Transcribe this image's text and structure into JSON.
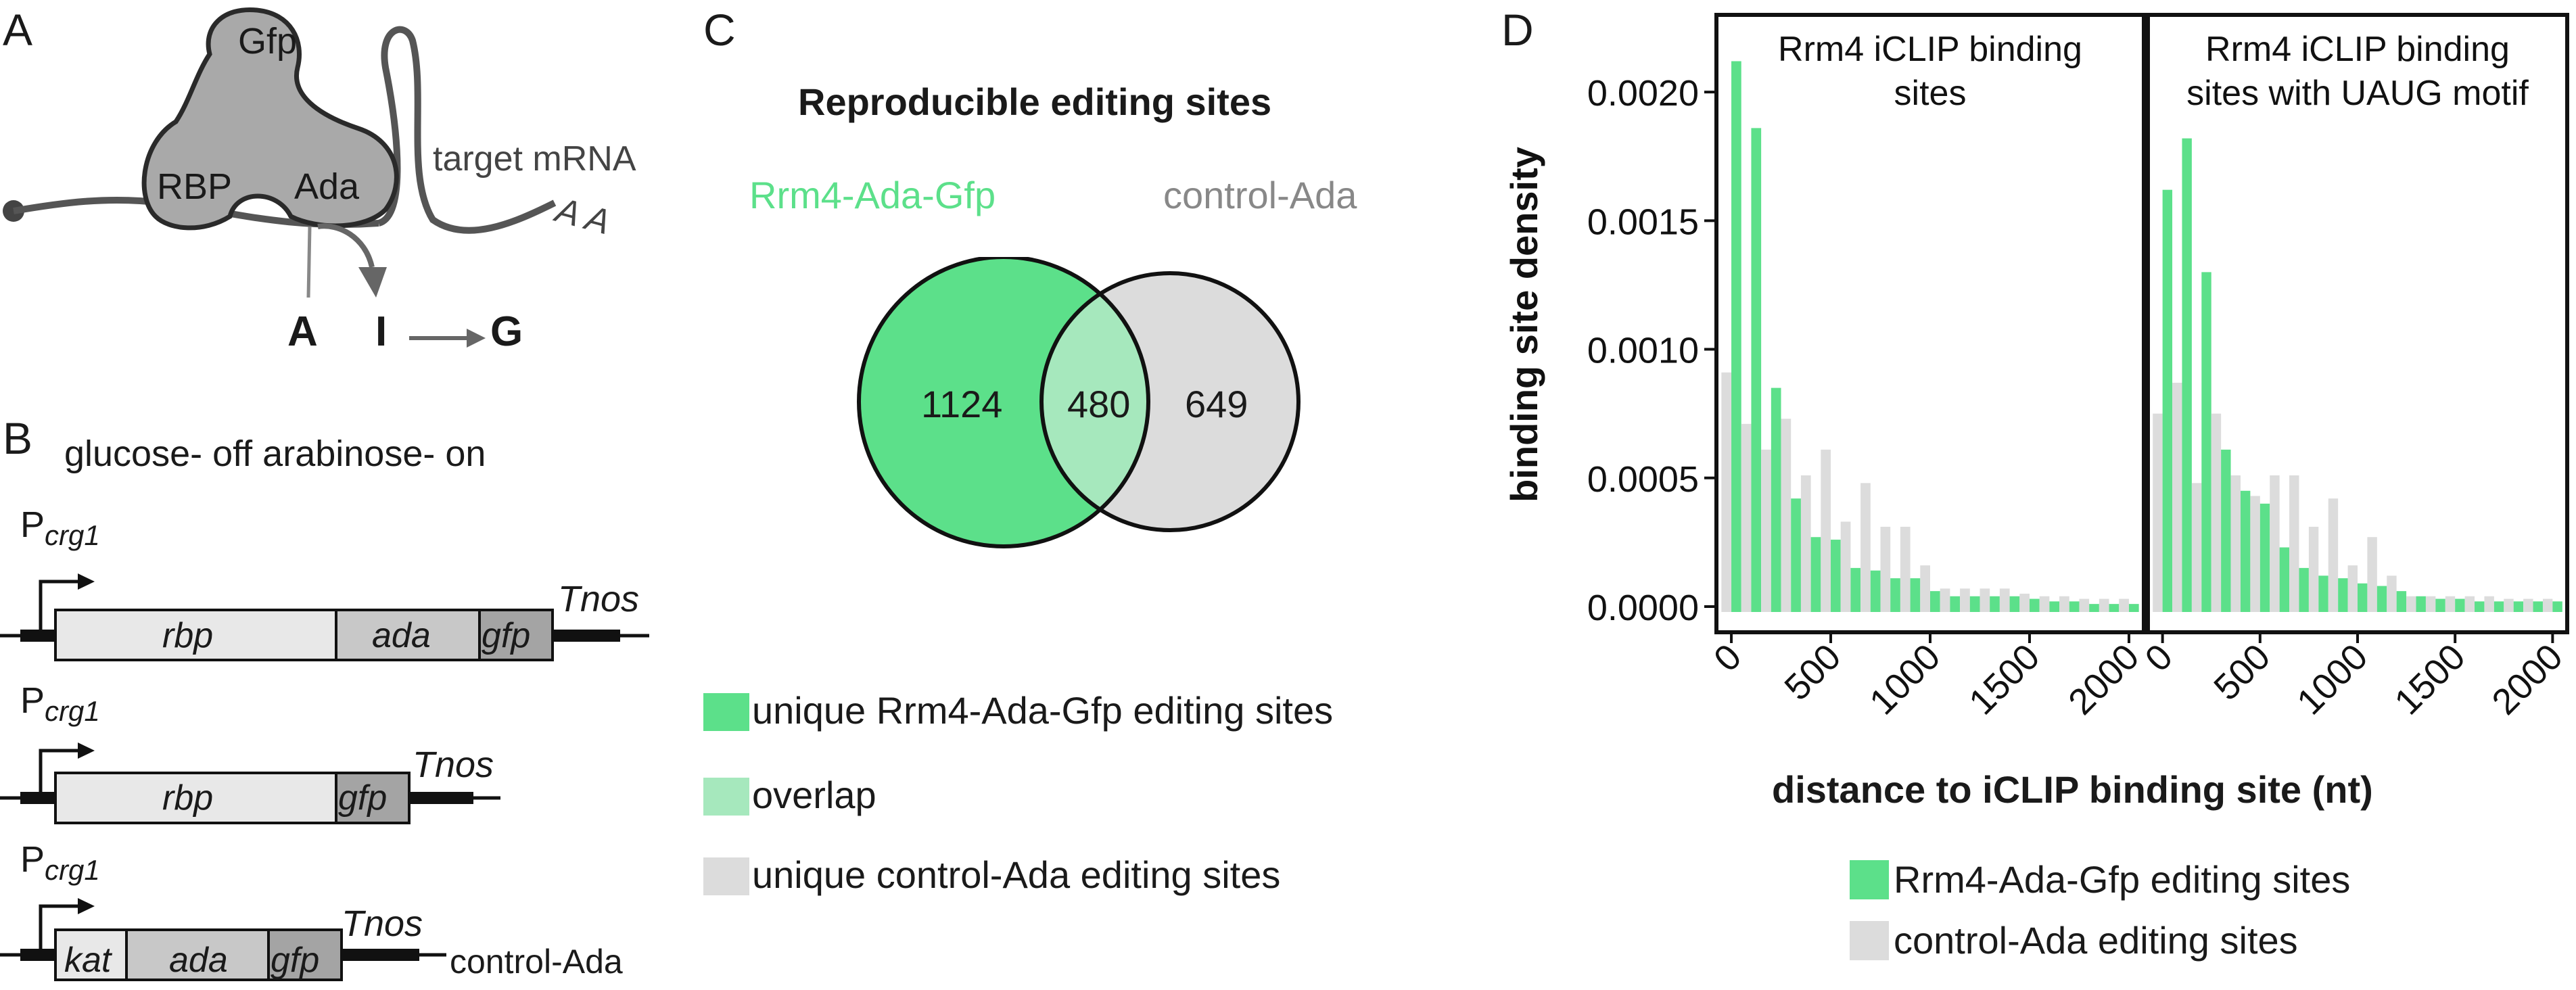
{
  "panelA": {
    "label": "A",
    "gfp": "Gfp",
    "rbp": "RBP",
    "ada": "Ada",
    "target_mrna": "target mRNA",
    "polyA": "A A",
    "nucleotides": [
      "A",
      "I",
      "G"
    ]
  },
  "panelB": {
    "label": "B",
    "condition": "glucose- off arabinose- on",
    "promoter": "P",
    "promoter_sub": "crg1",
    "terminator": "Tnos",
    "construct1": [
      "rbp",
      "ada",
      "gfp"
    ],
    "construct2": [
      "rbp",
      "gfp"
    ],
    "construct3": [
      "kat",
      "ada",
      "gfp"
    ],
    "construct3_name": "control-Ada"
  },
  "panelC": {
    "label": "C",
    "title": "Reproducible editing sites",
    "set1": "Rrm4-Ada-Gfp",
    "set2": "control-Ada",
    "unique1": "1124",
    "overlap": "480",
    "unique2": "649",
    "legend": [
      "unique Rrm4-Ada-Gfp editing sites",
      "overlap",
      "unique control-Ada editing sites"
    ],
    "colors": {
      "green": "#5ce08a",
      "overlap": "#a6e8bd",
      "gray": "#dcdcdc"
    }
  },
  "panelD": {
    "label": "D",
    "ylabel": "binding site density",
    "xlabel": "distance to iCLIP binding site (nt)",
    "facet_titles": [
      "Rrm4 iCLIP binding sites",
      "Rrm4 iCLIP binding sites with UAUG motif"
    ],
    "legend": [
      "Rrm4-Ada-Gfp editing sites",
      "control-Ada editing sites"
    ]
  },
  "chart_data": [
    {
      "type": "bar",
      "title": "Rrm4 iCLIP binding sites",
      "xlabel": "distance to iCLIP binding site (nt)",
      "ylabel": "binding site density",
      "x": [
        0,
        100,
        200,
        300,
        400,
        500,
        600,
        700,
        800,
        900,
        1000,
        1100,
        1200,
        1300,
        1400,
        1500,
        1600,
        1700,
        1800,
        1900,
        2000
      ],
      "xticks": [
        0,
        500,
        1000,
        1500,
        2000
      ],
      "yticks": [
        0.0,
        0.0005,
        0.001,
        0.0015,
        0.002
      ],
      "ylim": [
        -0.0001,
        0.0023
      ],
      "series": [
        {
          "name": "Rrm4-Ada-Gfp editing sites",
          "color": "#5ce08a",
          "values": [
            0.00212,
            0.00186,
            0.00085,
            0.00042,
            0.00027,
            0.00026,
            0.00015,
            0.00014,
            0.00011,
            0.00011,
            6e-05,
            4e-05,
            4e-05,
            4e-05,
            4e-05,
            3e-05,
            2e-05,
            2e-05,
            1e-05,
            1e-05,
            1e-05
          ]
        },
        {
          "name": "control-Ada editing sites",
          "color": "#dcdcdc",
          "values": [
            0.00091,
            0.00071,
            0.00061,
            0.00073,
            0.00051,
            0.00061,
            0.00033,
            0.00048,
            0.00031,
            0.00031,
            0.00016,
            7e-05,
            7e-05,
            7e-05,
            7e-05,
            5e-05,
            4e-05,
            4e-05,
            3e-05,
            3e-05,
            3e-05
          ]
        }
      ]
    },
    {
      "type": "bar",
      "title": "Rrm4 iCLIP binding sites with UAUG motif",
      "xlabel": "distance to iCLIP binding site (nt)",
      "ylabel": "binding site density",
      "x": [
        0,
        100,
        200,
        300,
        400,
        500,
        600,
        700,
        800,
        900,
        1000,
        1100,
        1200,
        1300,
        1400,
        1500,
        1600,
        1700,
        1800,
        1900,
        2000
      ],
      "xticks": [
        0,
        500,
        1000,
        1500,
        2000
      ],
      "ylim": [
        -0.0001,
        0.0023
      ],
      "series": [
        {
          "name": "Rrm4-Ada-Gfp editing sites",
          "color": "#5ce08a",
          "values": [
            0.00162,
            0.00182,
            0.0013,
            0.00061,
            0.00045,
            0.0004,
            0.00023,
            0.00015,
            0.00012,
            0.00011,
            9e-05,
            8e-05,
            6e-05,
            4e-05,
            3e-05,
            3e-05,
            2e-05,
            2e-05,
            2e-05,
            2e-05,
            2e-05
          ]
        },
        {
          "name": "control-Ada editing sites",
          "color": "#dcdcdc",
          "values": [
            0.00075,
            0.00087,
            0.00048,
            0.00075,
            0.00051,
            0.00043,
            0.00051,
            0.00051,
            0.00031,
            0.00042,
            0.00016,
            0.00027,
            0.00012,
            4e-05,
            4e-05,
            4e-05,
            4e-05,
            4e-05,
            3e-05,
            3e-05,
            3e-05
          ]
        }
      ]
    }
  ]
}
